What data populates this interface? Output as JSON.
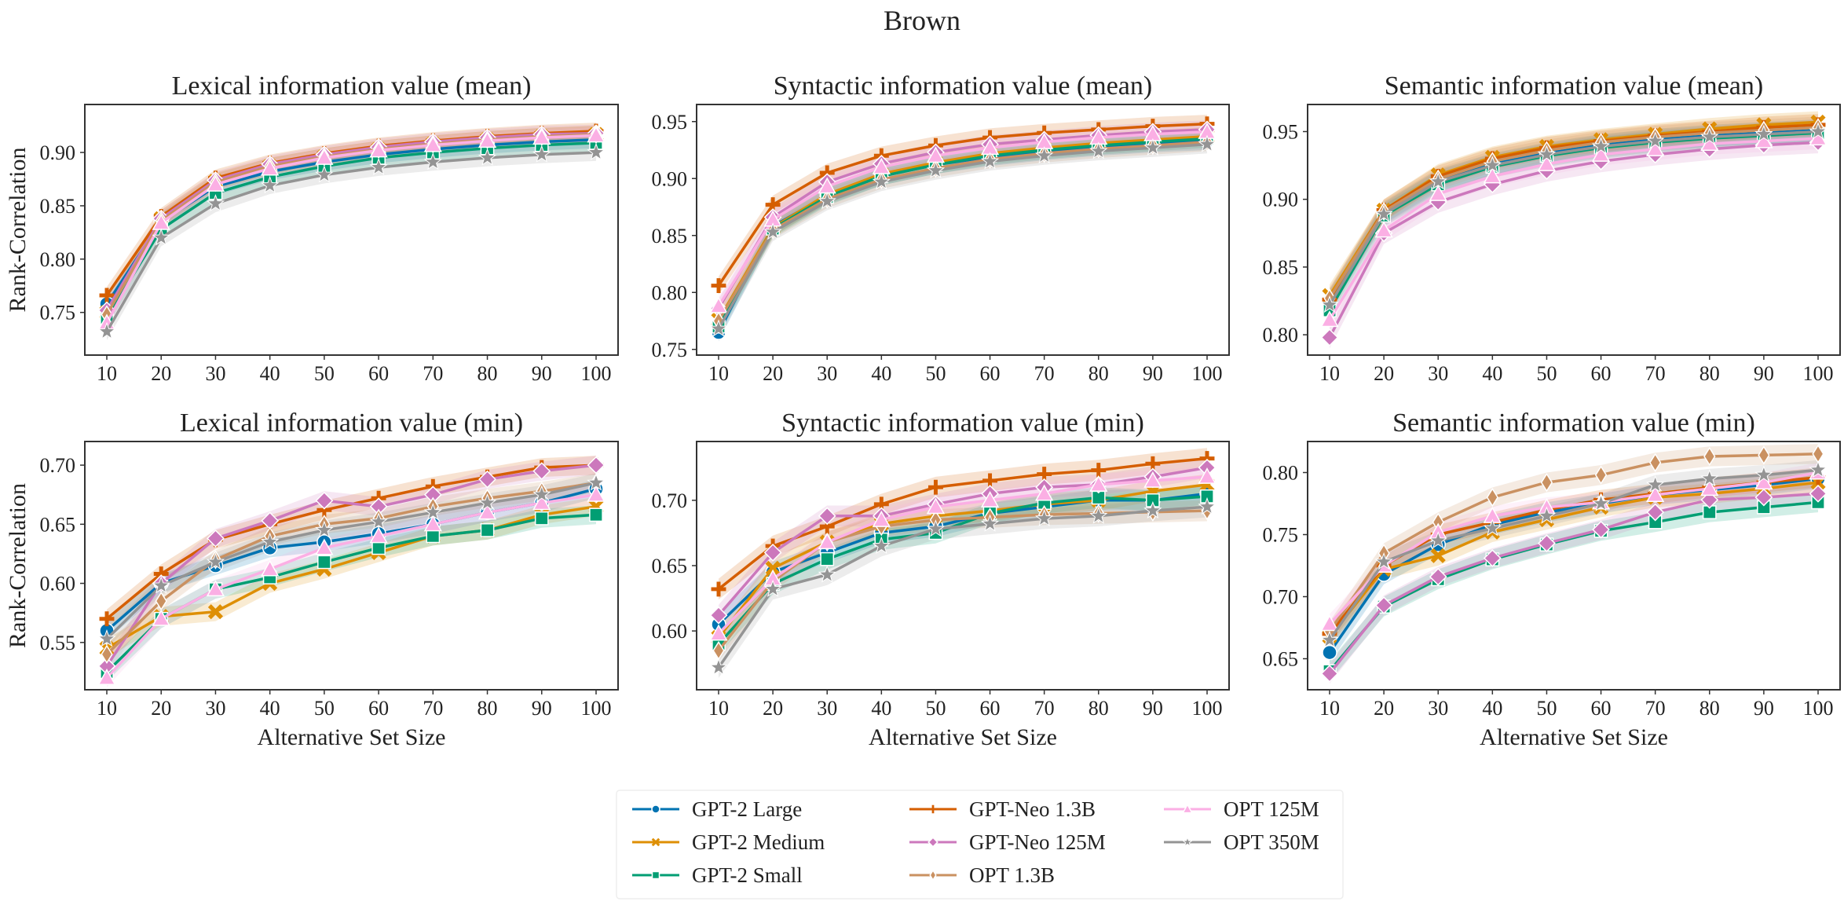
{
  "figure": {
    "suptitle": "Brown"
  },
  "legend": {
    "entries": [
      {
        "name": "GPT-2 Large",
        "color": "#0173b2",
        "marker": "circle"
      },
      {
        "name": "GPT-2 Medium",
        "color": "#de8f05",
        "marker": "x"
      },
      {
        "name": "GPT-2 Small",
        "color": "#029e73",
        "marker": "square"
      },
      {
        "name": "GPT-Neo 1.3B",
        "color": "#d55e00",
        "marker": "plus"
      },
      {
        "name": "GPT-Neo 125M",
        "color": "#cc78bc",
        "marker": "diamond"
      },
      {
        "name": "OPT 1.3B",
        "color": "#ca9161",
        "marker": "thin-diamond"
      },
      {
        "name": "OPT 125M",
        "color": "#fbafe4",
        "marker": "triangle"
      },
      {
        "name": "OPT 350M",
        "color": "#949494",
        "marker": "star"
      }
    ],
    "placement": "bottom-center"
  },
  "chart_data": [
    {
      "type": "line",
      "title": "Lexical information value (mean)",
      "xlabel": "",
      "ylabel": "Rank-Correlation",
      "categories": [
        10,
        20,
        30,
        40,
        50,
        60,
        70,
        80,
        90,
        100
      ],
      "ylim": [
        0.71,
        0.945
      ],
      "yticks": [
        0.75,
        0.8,
        0.85,
        0.9
      ],
      "tick_decimals": 2,
      "series": [
        {
          "name": "GPT-2 Large",
          "values": [
            0.758,
            0.835,
            0.868,
            0.882,
            0.891,
            0.898,
            0.903,
            0.907,
            0.91,
            0.912
          ]
        },
        {
          "name": "GPT-2 Medium",
          "values": [
            0.75,
            0.838,
            0.873,
            0.887,
            0.896,
            0.903,
            0.908,
            0.912,
            0.915,
            0.917
          ]
        },
        {
          "name": "GPT-2 Small",
          "values": [
            0.745,
            0.828,
            0.862,
            0.877,
            0.887,
            0.895,
            0.9,
            0.904,
            0.907,
            0.909
          ]
        },
        {
          "name": "GPT-Neo 1.3B",
          "values": [
            0.766,
            0.84,
            0.876,
            0.89,
            0.899,
            0.906,
            0.911,
            0.915,
            0.918,
            0.92
          ]
        },
        {
          "name": "GPT-Neo 125M",
          "values": [
            0.752,
            0.838,
            0.874,
            0.889,
            0.898,
            0.905,
            0.91,
            0.914,
            0.917,
            0.918
          ]
        },
        {
          "name": "OPT 1.3B",
          "values": [
            0.748,
            0.836,
            0.872,
            0.887,
            0.896,
            0.903,
            0.908,
            0.912,
            0.915,
            0.917
          ]
        },
        {
          "name": "OPT 125M",
          "values": [
            0.74,
            0.834,
            0.87,
            0.885,
            0.895,
            0.902,
            0.907,
            0.911,
            0.914,
            0.916
          ]
        },
        {
          "name": "OPT 350M",
          "values": [
            0.732,
            0.82,
            0.852,
            0.869,
            0.879,
            0.886,
            0.891,
            0.895,
            0.898,
            0.9
          ]
        }
      ]
    },
    {
      "type": "line",
      "title": "Syntactic information value (mean)",
      "xlabel": "",
      "ylabel": "",
      "categories": [
        10,
        20,
        30,
        40,
        50,
        60,
        70,
        80,
        90,
        100
      ],
      "ylim": [
        0.745,
        0.965
      ],
      "yticks": [
        0.75,
        0.8,
        0.85,
        0.9,
        0.95
      ],
      "tick_decimals": 2,
      "series": [
        {
          "name": "GPT-2 Large",
          "values": [
            0.765,
            0.858,
            0.885,
            0.902,
            0.912,
            0.919,
            0.924,
            0.928,
            0.931,
            0.933
          ]
        },
        {
          "name": "GPT-2 Medium",
          "values": [
            0.776,
            0.857,
            0.886,
            0.904,
            0.914,
            0.922,
            0.927,
            0.931,
            0.934,
            0.937
          ]
        },
        {
          "name": "GPT-2 Small",
          "values": [
            0.77,
            0.856,
            0.884,
            0.902,
            0.912,
            0.92,
            0.925,
            0.929,
            0.932,
            0.935
          ]
        },
        {
          "name": "GPT-Neo 1.3B",
          "values": [
            0.806,
            0.877,
            0.905,
            0.92,
            0.929,
            0.936,
            0.94,
            0.943,
            0.946,
            0.948
          ]
        },
        {
          "name": "GPT-Neo 125M",
          "values": [
            0.786,
            0.866,
            0.897,
            0.913,
            0.923,
            0.93,
            0.934,
            0.938,
            0.941,
            0.943
          ]
        },
        {
          "name": "OPT 1.3B",
          "values": [
            0.775,
            0.855,
            0.882,
            0.899,
            0.909,
            0.917,
            0.922,
            0.926,
            0.929,
            0.932
          ]
        },
        {
          "name": "OPT 125M",
          "values": [
            0.788,
            0.864,
            0.893,
            0.91,
            0.92,
            0.927,
            0.932,
            0.936,
            0.939,
            0.941
          ]
        },
        {
          "name": "OPT 350M",
          "values": [
            0.768,
            0.853,
            0.88,
            0.897,
            0.907,
            0.915,
            0.92,
            0.924,
            0.927,
            0.93
          ]
        }
      ]
    },
    {
      "type": "line",
      "title": "Semantic information value (mean)",
      "xlabel": "",
      "ylabel": "",
      "categories": [
        10,
        20,
        30,
        40,
        50,
        60,
        70,
        80,
        90,
        100
      ],
      "ylim": [
        0.785,
        0.97
      ],
      "yticks": [
        0.8,
        0.85,
        0.9,
        0.95
      ],
      "tick_decimals": 2,
      "series": [
        {
          "name": "GPT-2 Large",
          "values": [
            0.825,
            0.89,
            0.914,
            0.926,
            0.934,
            0.94,
            0.944,
            0.947,
            0.949,
            0.951
          ]
        },
        {
          "name": "GPT-2 Medium",
          "values": [
            0.829,
            0.892,
            0.918,
            0.931,
            0.939,
            0.944,
            0.948,
            0.952,
            0.955,
            0.957
          ]
        },
        {
          "name": "GPT-2 Small",
          "values": [
            0.818,
            0.888,
            0.911,
            0.924,
            0.932,
            0.938,
            0.942,
            0.945,
            0.947,
            0.949
          ]
        },
        {
          "name": "GPT-Neo 1.3B",
          "values": [
            0.826,
            0.892,
            0.917,
            0.93,
            0.938,
            0.943,
            0.947,
            0.95,
            0.953,
            0.955
          ]
        },
        {
          "name": "GPT-Neo 125M",
          "values": [
            0.798,
            0.875,
            0.898,
            0.911,
            0.921,
            0.928,
            0.933,
            0.937,
            0.94,
            0.942
          ]
        },
        {
          "name": "OPT 1.3B",
          "values": [
            0.827,
            0.891,
            0.915,
            0.928,
            0.936,
            0.942,
            0.946,
            0.949,
            0.951,
            0.953
          ]
        },
        {
          "name": "OPT 125M",
          "values": [
            0.811,
            0.877,
            0.904,
            0.917,
            0.926,
            0.933,
            0.937,
            0.941,
            0.943,
            0.945
          ]
        },
        {
          "name": "OPT 350M",
          "values": [
            0.822,
            0.889,
            0.913,
            0.925,
            0.933,
            0.939,
            0.943,
            0.946,
            0.948,
            0.95
          ]
        }
      ]
    },
    {
      "type": "line",
      "title": "Lexical information value (min)",
      "xlabel": "Alternative Set Size",
      "ylabel": "Rank-Correlation",
      "categories": [
        10,
        20,
        30,
        40,
        50,
        60,
        70,
        80,
        90,
        100
      ],
      "ylim": [
        0.51,
        0.72
      ],
      "yticks": [
        0.55,
        0.6,
        0.65,
        0.7
      ],
      "tick_decimals": 2,
      "series": [
        {
          "name": "GPT-2 Large",
          "values": [
            0.56,
            0.6,
            0.615,
            0.63,
            0.635,
            0.642,
            0.65,
            0.66,
            0.668,
            0.68
          ]
        },
        {
          "name": "GPT-2 Medium",
          "values": [
            0.545,
            0.572,
            0.576,
            0.6,
            0.612,
            0.626,
            0.64,
            0.645,
            0.658,
            0.665
          ]
        },
        {
          "name": "GPT-2 Small",
          "values": [
            0.525,
            0.57,
            0.595,
            0.605,
            0.618,
            0.63,
            0.64,
            0.645,
            0.655,
            0.658
          ]
        },
        {
          "name": "GPT-Neo 1.3B",
          "values": [
            0.57,
            0.608,
            0.637,
            0.65,
            0.662,
            0.672,
            0.682,
            0.69,
            0.698,
            0.7
          ]
        },
        {
          "name": "GPT-Neo 125M",
          "values": [
            0.53,
            0.6,
            0.638,
            0.653,
            0.67,
            0.665,
            0.675,
            0.688,
            0.695,
            0.7
          ]
        },
        {
          "name": "OPT 1.3B",
          "values": [
            0.54,
            0.585,
            0.62,
            0.64,
            0.65,
            0.655,
            0.665,
            0.672,
            0.678,
            0.685
          ]
        },
        {
          "name": "OPT 125M",
          "values": [
            0.52,
            0.57,
            0.595,
            0.612,
            0.63,
            0.64,
            0.65,
            0.66,
            0.668,
            0.675
          ]
        },
        {
          "name": "OPT 350M",
          "values": [
            0.553,
            0.598,
            0.618,
            0.635,
            0.645,
            0.652,
            0.66,
            0.668,
            0.675,
            0.685
          ]
        }
      ]
    },
    {
      "type": "line",
      "title": "Syntactic information value (min)",
      "xlabel": "Alternative Set Size",
      "ylabel": "",
      "categories": [
        10,
        20,
        30,
        40,
        50,
        60,
        70,
        80,
        90,
        100
      ],
      "ylim": [
        0.555,
        0.745
      ],
      "yticks": [
        0.6,
        0.65,
        0.7
      ],
      "tick_decimals": 2,
      "series": [
        {
          "name": "GPT-2 Large",
          "values": [
            0.605,
            0.645,
            0.66,
            0.675,
            0.68,
            0.69,
            0.695,
            0.7,
            0.7,
            0.705
          ]
        },
        {
          "name": "GPT-2 Medium",
          "values": [
            0.595,
            0.648,
            0.668,
            0.682,
            0.688,
            0.692,
            0.697,
            0.7,
            0.707,
            0.712
          ]
        },
        {
          "name": "GPT-2 Small",
          "values": [
            0.59,
            0.636,
            0.655,
            0.67,
            0.675,
            0.69,
            0.698,
            0.702,
            0.7,
            0.703
          ]
        },
        {
          "name": "GPT-Neo 1.3B",
          "values": [
            0.632,
            0.665,
            0.68,
            0.697,
            0.71,
            0.715,
            0.72,
            0.723,
            0.728,
            0.732
          ]
        },
        {
          "name": "GPT-Neo 125M",
          "values": [
            0.612,
            0.66,
            0.688,
            0.688,
            0.697,
            0.705,
            0.71,
            0.712,
            0.718,
            0.725
          ]
        },
        {
          "name": "OPT 1.3B",
          "values": [
            0.585,
            0.638,
            0.668,
            0.68,
            0.685,
            0.687,
            0.689,
            0.69,
            0.691,
            0.692
          ]
        },
        {
          "name": "OPT 125M",
          "values": [
            0.598,
            0.64,
            0.668,
            0.685,
            0.695,
            0.7,
            0.705,
            0.712,
            0.715,
            0.718
          ]
        },
        {
          "name": "OPT 350M",
          "values": [
            0.572,
            0.632,
            0.643,
            0.665,
            0.678,
            0.682,
            0.686,
            0.688,
            0.692,
            0.695
          ]
        }
      ]
    },
    {
      "type": "line",
      "title": "Semantic information value (min)",
      "xlabel": "Alternative Set Size",
      "ylabel": "",
      "categories": [
        10,
        20,
        30,
        40,
        50,
        60,
        70,
        80,
        90,
        100
      ],
      "ylim": [
        0.625,
        0.825
      ],
      "yticks": [
        0.65,
        0.7,
        0.75,
        0.8
      ],
      "tick_decimals": 2,
      "series": [
        {
          "name": "GPT-2 Large",
          "values": [
            0.655,
            0.718,
            0.742,
            0.758,
            0.768,
            0.775,
            0.782,
            0.786,
            0.79,
            0.795
          ]
        },
        {
          "name": "GPT-2 Medium",
          "values": [
            0.668,
            0.722,
            0.733,
            0.752,
            0.762,
            0.772,
            0.78,
            0.783,
            0.787,
            0.792
          ]
        },
        {
          "name": "GPT-2 Small",
          "values": [
            0.64,
            0.692,
            0.714,
            0.73,
            0.742,
            0.753,
            0.76,
            0.768,
            0.772,
            0.776
          ]
        },
        {
          "name": "GPT-Neo 1.3B",
          "values": [
            0.67,
            0.725,
            0.75,
            0.76,
            0.77,
            0.778,
            0.783,
            0.788,
            0.792,
            0.796
          ]
        },
        {
          "name": "GPT-Neo 125M",
          "values": [
            0.638,
            0.693,
            0.716,
            0.731,
            0.743,
            0.754,
            0.768,
            0.778,
            0.78,
            0.783
          ]
        },
        {
          "name": "OPT 1.3B",
          "values": [
            0.672,
            0.735,
            0.76,
            0.78,
            0.792,
            0.798,
            0.808,
            0.813,
            0.814,
            0.815
          ]
        },
        {
          "name": "OPT 125M",
          "values": [
            0.678,
            0.725,
            0.752,
            0.765,
            0.772,
            0.776,
            0.782,
            0.787,
            0.792,
            0.8
          ]
        },
        {
          "name": "OPT 350M",
          "values": [
            0.665,
            0.728,
            0.745,
            0.755,
            0.765,
            0.775,
            0.79,
            0.795,
            0.798,
            0.802
          ]
        }
      ]
    }
  ]
}
